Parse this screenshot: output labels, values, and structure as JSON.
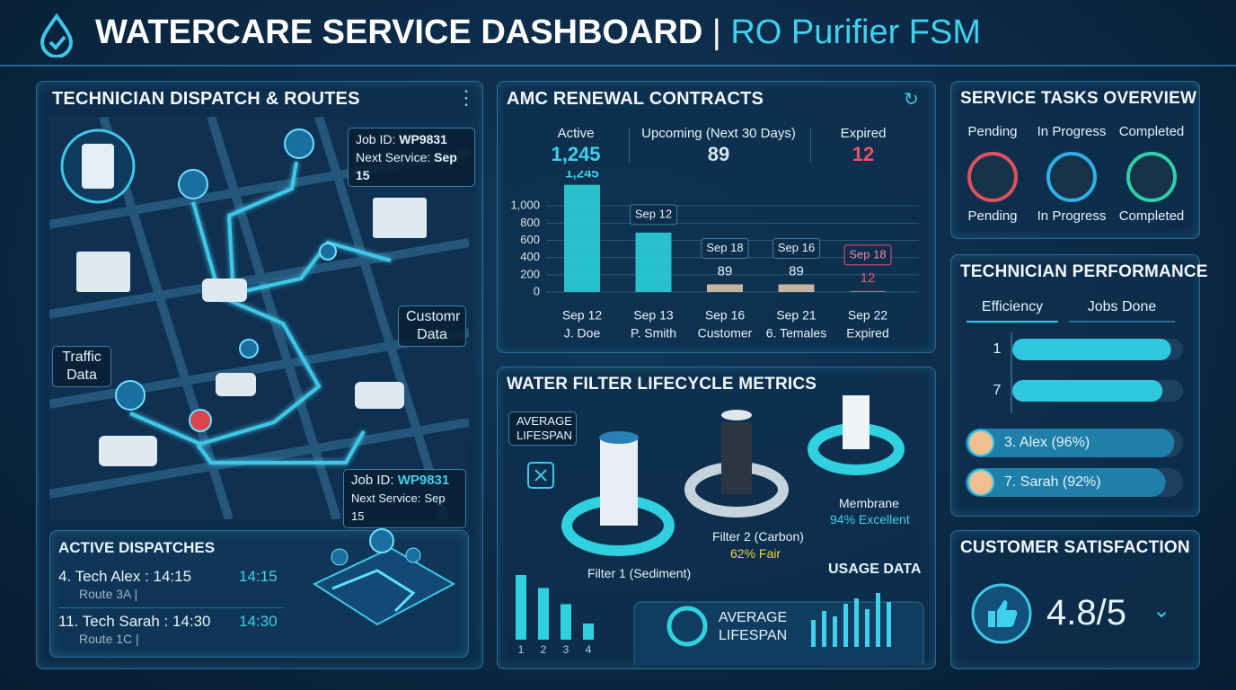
{
  "header": {
    "title": "WATERCARE SERVICE DASHBOARD",
    "separator": "|",
    "subtitle": "RO Purifier FSM"
  },
  "dispatch": {
    "title": "TECHNICIAN DISPATCH & ROUTES",
    "job_top": {
      "label": "Job ID:",
      "id": "WP9831",
      "next_label": "Next Service:",
      "next_date": "Sep 15"
    },
    "customer_data": [
      "Customr",
      "Data"
    ],
    "traffic_data": [
      "Traffic",
      "Data"
    ],
    "job_bottom": {
      "label": "Job ID:",
      "id": "WP9831",
      "next_label": "Next Service:",
      "next_date": "Sep 15"
    },
    "active": {
      "title": "ACTIVE DISPATCHES",
      "items": [
        {
          "name": "4. Tech Alex : 14:15",
          "time": "14:15",
          "route": "Route 3A |"
        },
        {
          "name": "11. Tech Sarah : 14:30",
          "time": "14:30",
          "route": "Route 1C |"
        }
      ]
    }
  },
  "amc": {
    "title": "AMC RENEWAL CONTRACTS",
    "stats": [
      {
        "label": "Active",
        "value": "1,245"
      },
      {
        "label": "Upcoming (Next 30 Days)",
        "value": "89"
      },
      {
        "label": "Expired",
        "value": "12"
      }
    ],
    "chart": {
      "type": "bar",
      "ylim": [
        0,
        1200
      ],
      "yticks": [
        {
          "value": 1000,
          "label": "1,000"
        },
        800,
        600,
        400,
        200,
        0
      ],
      "bars": [
        {
          "date": "Sep 12",
          "name": "J. Doe",
          "value": 1245,
          "value_label": "1,245"
        },
        {
          "date": "Sep 13",
          "name": "P. Smith",
          "value": 690,
          "tag": "Sep 12"
        },
        {
          "date": "Sep 16",
          "name": "Customer",
          "value": 89,
          "tag": "Sep 18"
        },
        {
          "date": "Sep 21",
          "name": "6. Temales",
          "value": 89,
          "tag": "Sep 16"
        },
        {
          "date": "Sep 22",
          "name": "Expired",
          "value": 12,
          "tag": "Sep 18"
        }
      ]
    }
  },
  "filters": {
    "title": "WATER FILTER LIFECYCLE METRICS",
    "badge": [
      "AVERAGE",
      "LIFESPAN"
    ],
    "items": [
      {
        "name": "Filter 1 (Sediment)"
      },
      {
        "name": "Filter 2 (Carbon)",
        "status": "62% Fair"
      },
      {
        "name": "Membrane",
        "status": "94% Excellent"
      }
    ],
    "mini_chart": {
      "categories": [
        "1",
        "2",
        "3",
        "4"
      ],
      "values": [
        100,
        80,
        55,
        25
      ]
    },
    "usage_title": "USAGE DATA",
    "usage_label": [
      "AVERAGE",
      "LIFESPAN"
    ]
  },
  "tasks": {
    "title": "SERVICE TASKS OVERVIEW",
    "top_labels": [
      "Pending",
      "In Progress",
      "Completed"
    ],
    "bottom_labels": [
      "Pending",
      "In Progress",
      "Completed"
    ]
  },
  "performance": {
    "title": "TECHNICIAN PERFORMANCE",
    "tabs": [
      "Efficiency",
      "Jobs Done"
    ],
    "rows": [
      {
        "label": "1",
        "value": 93
      },
      {
        "label": "7",
        "value": 88
      }
    ],
    "techs": [
      {
        "label": "3. Alex (96%)",
        "value": 96
      },
      {
        "label": "7. Sarah (92%)",
        "value": 92
      }
    ]
  },
  "satisfaction": {
    "title": "CUSTOMER SATISFACTION",
    "score": "4.8/5"
  }
}
